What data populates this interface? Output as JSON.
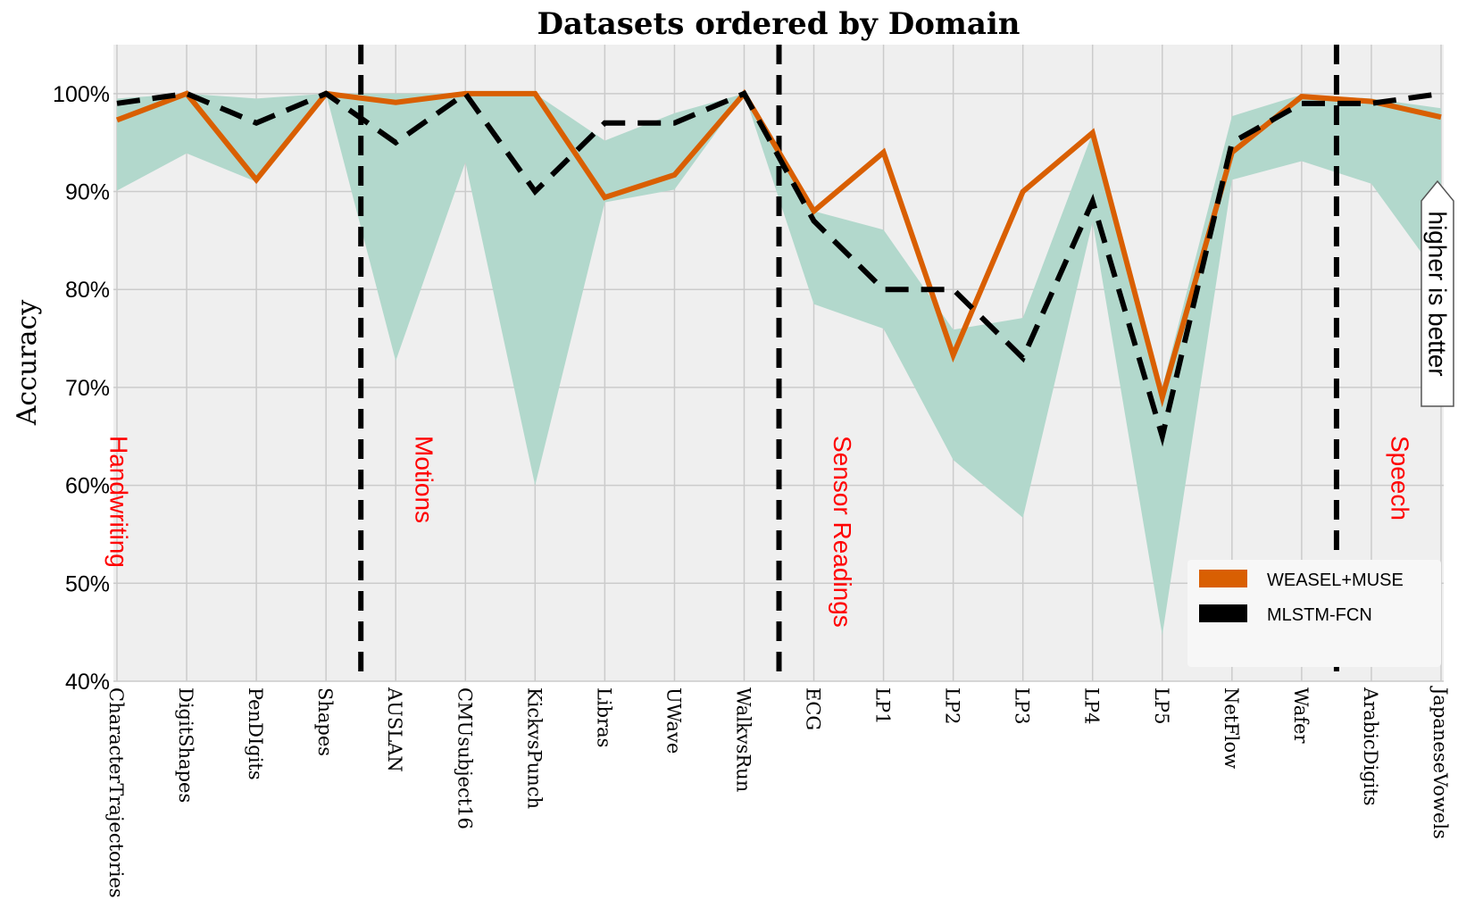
{
  "chart_data": {
    "type": "line",
    "title": "Datasets ordered by Domain",
    "xlabel": "",
    "ylabel": "Accuracy",
    "ylim": [
      40,
      105
    ],
    "yticks": [
      40,
      50,
      60,
      70,
      80,
      90,
      100
    ],
    "ytick_labels": [
      "40%",
      "50%",
      "60%",
      "70%",
      "80%",
      "90%",
      "100%"
    ],
    "grid": true,
    "categories": [
      "CharacterTrajectories",
      "DigitShapes",
      "PenDIgits",
      "Shapes",
      "AUSLAN",
      "CMUsubject16",
      "KickvsPunch",
      "Libras",
      "UWave",
      "WalkvsRun",
      "ECG",
      "LP1",
      "LP2",
      "LP3",
      "LP4",
      "LP5",
      "NetFlow",
      "Wafer",
      "ArabicDigits",
      "JapaneseVowels"
    ],
    "series": [
      {
        "name": "WEASEL+MUSE",
        "color": "#d95f02",
        "style": "solid",
        "values": [
          97.3,
          100,
          91.2,
          100,
          99.1,
          100,
          100,
          89.4,
          91.7,
          100,
          88,
          94,
          73.3,
          90,
          96,
          69,
          94,
          99.7,
          99.2,
          97.6
        ]
      },
      {
        "name": "MLSTM-FCN",
        "color": "#000000",
        "style": "dashed",
        "values": [
          99,
          100,
          97,
          100,
          95,
          100,
          90,
          97,
          97,
          100,
          87,
          80,
          80,
          73,
          89,
          65,
          95,
          99,
          99,
          100
        ]
      }
    ],
    "band": {
      "color": "#b2d8cc",
      "upper": [
        99.5,
        100,
        99.5,
        100,
        100,
        100,
        100,
        95.2,
        98,
        100,
        88,
        86.1,
        75.9,
        77.1,
        96,
        70,
        97.7,
        99.9,
        99.5,
        98.5
      ],
      "lower": [
        90.1,
        93.9,
        91,
        100,
        72.7,
        93,
        60,
        88.9,
        90.2,
        100,
        78.5,
        76,
        62.6,
        56.7,
        86.9,
        44.7,
        91.2,
        93.1,
        90.8,
        81
      ]
    },
    "domain_separators_after_index": [
      3,
      9,
      17
    ],
    "domains": [
      {
        "label": "Handwriting",
        "start_index": 0
      },
      {
        "label": "Motions",
        "start_index": 4
      },
      {
        "label": "Sensor Readings",
        "start_index": 10
      },
      {
        "label": "Speech",
        "start_index": 18
      }
    ],
    "legend": {
      "position": "lower-right",
      "entries": [
        "WEASEL+MUSE",
        "MLSTM-FCN"
      ]
    },
    "annotation": "higher is better"
  },
  "colors": {
    "background": "#efefef",
    "grid": "#cbcbcb",
    "domain_text": "#ff0000"
  }
}
